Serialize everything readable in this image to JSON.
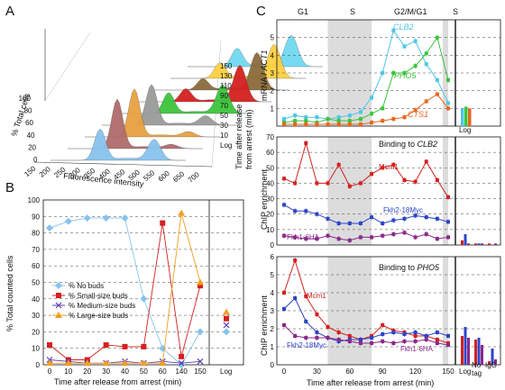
{
  "panels": {
    "A": "A",
    "B": "B",
    "C": "C"
  },
  "colors": {
    "blue": "#2b45c8",
    "red": "#d42020",
    "purple": "#8a2a8a",
    "cyan": "#4ec6e6",
    "green": "#3cc43c",
    "orange": "#e8661e",
    "lightblue": "#86c3ee",
    "shade": "#dcdcdc"
  },
  "panel_a": {
    "ylabel": "% Total cells",
    "xlabel": "Fluorescence intensity",
    "zlabel_line1": "Time after release",
    "zlabel_line2": "from arrest (min)",
    "y_ticks": [
      "100",
      "80",
      "60",
      "40",
      "20",
      "0"
    ],
    "x_ticks": [
      "150",
      "200",
      "250",
      "300",
      "350",
      "400",
      "450",
      "500",
      "550",
      "600",
      "650",
      "700"
    ],
    "z_ticks": [
      "150",
      "130",
      "110",
      "90",
      "70",
      "50",
      "30",
      "10",
      "Log"
    ]
  },
  "chart_data": [
    {
      "panel": "A",
      "type": "area",
      "xlabel": "Fluorescence intensity",
      "ylabel": "% Total cells",
      "zlabel": "Time after release from arrest (min)",
      "xlim": [
        100,
        700
      ],
      "ylim": [
        0,
        100
      ],
      "z_categories": [
        "Log",
        "10",
        "30",
        "50",
        "70",
        "90",
        "110",
        "130",
        "150"
      ],
      "peak_1C_x": 320,
      "peak_2C_x": 560,
      "peak_height_1C": [
        60,
        95,
        92,
        78,
        40,
        25,
        22,
        30,
        35
      ],
      "peak_height_2C": [
        40,
        8,
        10,
        18,
        55,
        70,
        72,
        65,
        60
      ]
    },
    {
      "panel": "B",
      "type": "line",
      "xlabel": "Time after release from arrest (min)",
      "ylabel": "% Total counted cells",
      "x": [
        0,
        10,
        20,
        30,
        40,
        50,
        60,
        140,
        150
      ],
      "xlim": [
        0,
        150
      ],
      "ylim": [
        0,
        100
      ],
      "y_ticks": [
        0,
        10,
        20,
        30,
        40,
        50,
        60,
        70,
        80,
        90,
        100
      ],
      "extra_category": "Log",
      "series": [
        {
          "name": "% No buds",
          "color": "#86c3ee",
          "values": [
            83,
            87,
            89,
            89,
            89,
            40,
            10,
            0,
            20
          ],
          "log": 20
        },
        {
          "name": "% Small-size buds",
          "color": "#d42020",
          "values": [
            12,
            3,
            3,
            12,
            11,
            11,
            86,
            5,
            48
          ],
          "log": 28
        },
        {
          "name": "% Medium-size buds",
          "color": "#6040b0",
          "values": [
            3,
            2,
            1,
            1,
            2,
            1,
            2,
            1,
            2
          ],
          "log": 24
        },
        {
          "name": "% Large-size buds",
          "color": "#f0a020",
          "values": [
            1,
            1,
            1,
            1,
            1,
            1,
            1,
            92,
            50
          ],
          "log": 32
        }
      ]
    },
    {
      "panel": "C-top",
      "type": "line",
      "xlabel": "Time after release from arrest (min)",
      "ylabel": "mRNA / ACT1",
      "x": [
        0,
        10,
        20,
        30,
        40,
        50,
        60,
        70,
        80,
        90,
        100,
        110,
        120,
        130,
        140,
        150
      ],
      "xlim": [
        0,
        150
      ],
      "ylim": [
        0,
        6
      ],
      "y_ticks": [
        1,
        2,
        3,
        4,
        5
      ],
      "phases": [
        "G1",
        "S",
        "G2/M/G1",
        "S"
      ],
      "shaded_windows": [
        [
          40,
          80
        ],
        [
          145,
          150
        ]
      ],
      "extra_category": "Log",
      "series": [
        {
          "name": "CLB2",
          "color": "#4ec6e6",
          "values": [
            0.4,
            0.6,
            0.5,
            0.5,
            0.4,
            0.5,
            0.6,
            0.8,
            1.6,
            3.0,
            5.4,
            4.5,
            4.8,
            3.5,
            2.6,
            1.3
          ],
          "log": 1.0
        },
        {
          "name": "PHO5",
          "color": "#3cc43c",
          "values": [
            0.2,
            0.3,
            0.3,
            0.2,
            0.4,
            0.3,
            0.3,
            0.4,
            0.7,
            1.0,
            3.0,
            3.0,
            3.4,
            4.1,
            5.0,
            2.6
          ],
          "log": 1.1
        },
        {
          "name": "CTS1",
          "color": "#e8661e",
          "values": [
            0.1,
            0.1,
            0.1,
            0.1,
            0.1,
            0.1,
            0.1,
            0.1,
            0.2,
            0.3,
            0.4,
            0.5,
            0.9,
            1.4,
            1.8,
            1.0
          ],
          "log": 1.0
        }
      ]
    },
    {
      "panel": "C-middle",
      "type": "line",
      "title": "Binding to CLB2",
      "xlabel": "Time after release from arrest (min)",
      "ylabel": "ChIP enrichment",
      "x": [
        0,
        10,
        20,
        30,
        40,
        50,
        60,
        70,
        80,
        90,
        100,
        110,
        120,
        130,
        140,
        150
      ],
      "xlim": [
        0,
        150
      ],
      "ylim": [
        0,
        70
      ],
      "y_ticks": [
        0,
        10,
        20,
        30,
        40,
        50,
        60,
        70
      ],
      "series": [
        {
          "name": "Mcm1",
          "color": "#d42020",
          "values": [
            43,
            40,
            66,
            40,
            40,
            52,
            38,
            40,
            46,
            50,
            52,
            42,
            41,
            54,
            42,
            31
          ]
        },
        {
          "name": "Fkh2-18Myc",
          "color": "#2b45c8",
          "values": [
            26,
            22,
            22,
            20,
            17,
            14,
            14,
            14,
            18,
            14,
            16,
            17,
            19,
            18,
            17,
            15
          ]
        },
        {
          "name": "Fkh1-6HA",
          "color": "#8a2a8a",
          "values": [
            6,
            5,
            4,
            4,
            6,
            4,
            3,
            5,
            5,
            6,
            7,
            8,
            5,
            7,
            4,
            5
          ]
        }
      ],
      "log_bars": [
        {
          "category": "Log",
          "values": [
            3,
            7,
            1
          ]
        },
        {
          "category": "No tag",
          "values": [
            1,
            1,
            1
          ]
        },
        {
          "category": "IgG",
          "values": [
            1,
            0,
            1
          ]
        }
      ]
    },
    {
      "panel": "C-bottom",
      "type": "line",
      "title": "Binding to PHO5",
      "xlabel": "Time after release from arrest (min)",
      "ylabel": "ChIP enrichment",
      "x": [
        0,
        10,
        20,
        30,
        40,
        50,
        60,
        70,
        80,
        90,
        100,
        110,
        120,
        130,
        140,
        150
      ],
      "xlim": [
        0,
        150
      ],
      "ylim": [
        0,
        6
      ],
      "y_ticks": [
        0,
        1,
        2,
        3,
        4,
        5,
        6
      ],
      "x_ticks": [
        0,
        30,
        60,
        90,
        120,
        150
      ],
      "series": [
        {
          "name": "Mcm1",
          "color": "#d42020",
          "values": [
            4.0,
            5.8,
            3.8,
            2.8,
            2.1,
            1.8,
            1.6,
            1.4,
            1.6,
            2.2,
            1.9,
            1.8,
            1.6,
            1.6,
            1.4,
            1.2
          ]
        },
        {
          "name": "Fkh2-18Myc",
          "color": "#2b45c8",
          "values": [
            3.1,
            3.7,
            2.4,
            1.8,
            1.5,
            1.3,
            1.4,
            1.4,
            1.5,
            1.7,
            1.8,
            1.7,
            1.8,
            1.6,
            1.8,
            1.6
          ]
        },
        {
          "name": "Fkh1-6HA",
          "color": "#8a2a8a",
          "values": [
            2.2,
            1.6,
            1.5,
            1.5,
            1.5,
            1.4,
            1.3,
            1.2,
            1.2,
            1.3,
            1.2,
            1.3,
            1.3,
            1.4,
            1.2,
            1.1
          ]
        }
      ],
      "log_bars": [
        {
          "category": "Log",
          "values": [
            1.6,
            2.1,
            1.5
          ]
        },
        {
          "category": "No tag",
          "values": [
            1.4,
            1.5,
            1.1
          ]
        },
        {
          "category": "IgG",
          "values": [
            0.2,
            0.9,
            0.3
          ]
        }
      ]
    }
  ],
  "panel_b": {
    "ylabel": "% Total counted cells",
    "xlabel": "Time after release from arrest (min)",
    "x_ticks": [
      "0",
      "10",
      "20",
      "30",
      "40",
      "50",
      "60",
      "140",
      "150"
    ],
    "y_ticks": [
      "0",
      "10",
      "20",
      "30",
      "40",
      "50",
      "60",
      "70",
      "80",
      "90",
      "100"
    ],
    "log_label": "Log",
    "legend": [
      "% No buds",
      "% Small-size buds",
      "% Medium-size buds",
      "% Large-size buds"
    ]
  },
  "panel_c": {
    "phases": [
      "G1",
      "S",
      "G2/M/G1",
      "S"
    ],
    "top_ylabel_1": "mRNA / ",
    "top_ylabel_2": "ACT1",
    "top_y_ticks": [
      "1",
      "2",
      "3",
      "4",
      "5"
    ],
    "top_labels": {
      "clb2": "CLB2",
      "pho5": "PHO5",
      "cts1": "CTS1"
    },
    "log_label": "Log",
    "mid_title_1": "Binding to ",
    "mid_title_2": "CLB2",
    "mid_y_ticks": [
      "0",
      "10",
      "20",
      "30",
      "40",
      "50",
      "60",
      "70"
    ],
    "mid_labels": {
      "mcm1": "Mcm1",
      "fkh2": "Fkh2-18Myc",
      "fkh1": "Fkh1-6HA"
    },
    "chip_ylabel": "ChIP enrichment",
    "bot_title_1": "Binding to ",
    "bot_title_2": "PHO5",
    "bot_y_ticks": [
      "0",
      "1",
      "2",
      "3",
      "4",
      "5",
      "6"
    ],
    "bot_labels": {
      "mcm1": "Mcm1",
      "fkh2": "Fkh2-18Myc",
      "fkh1": "Fkh1-6HA"
    },
    "x_ticks": [
      "0",
      "30",
      "60",
      "90",
      "120",
      "150"
    ],
    "xlabel": "Time after release from arrest (min)",
    "bar_cats": {
      "log": "Log",
      "no": "No",
      "tag": "tag",
      "igg": "IgG"
    }
  }
}
